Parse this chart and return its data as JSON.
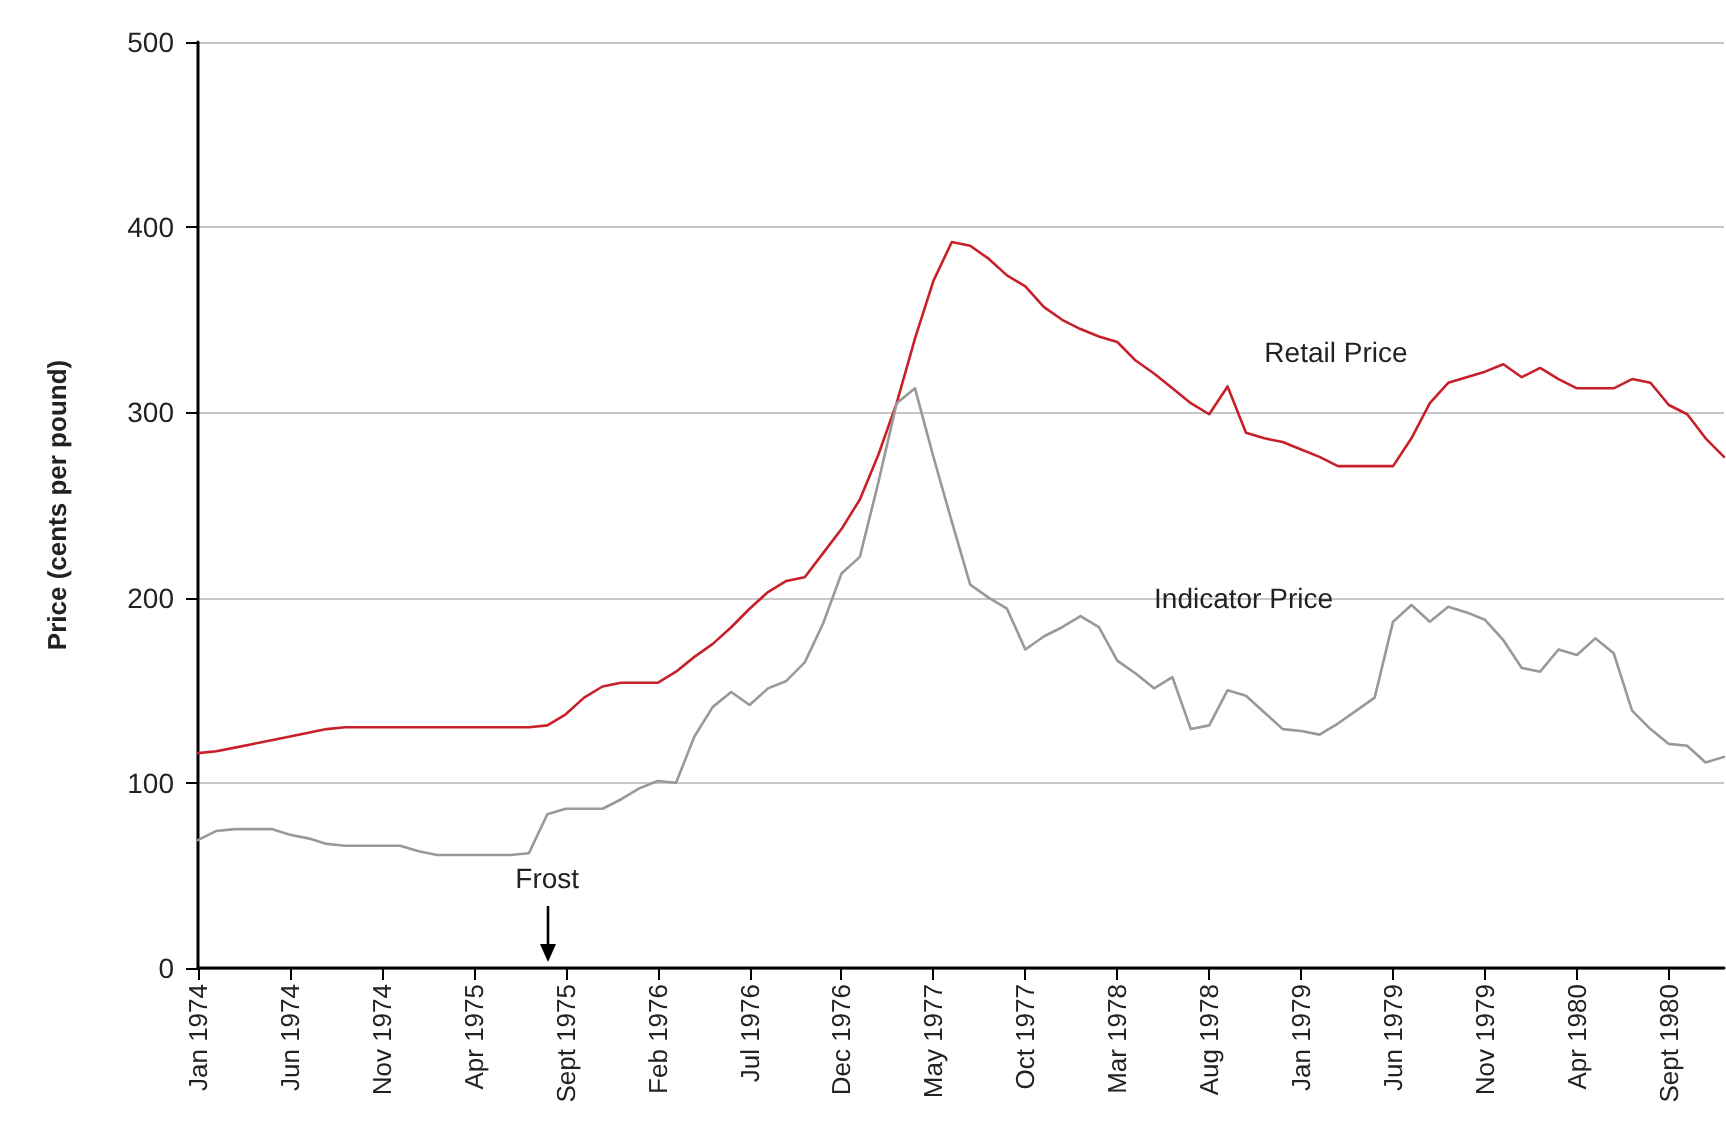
{
  "chart_data": {
    "type": "line",
    "ylabel": "Price (cents per pound)",
    "categories": [
      "Jan 1974",
      null,
      null,
      null,
      null,
      "Jun 1974",
      null,
      null,
      null,
      null,
      "Nov 1974",
      null,
      null,
      null,
      null,
      "Apr 1975",
      null,
      null,
      null,
      null,
      "Sept 1975",
      null,
      null,
      null,
      null,
      "Feb 1976",
      null,
      null,
      null,
      null,
      "Jul 1976",
      null,
      null,
      null,
      null,
      "Dec 1976",
      null,
      null,
      null,
      null,
      "May 1977",
      null,
      null,
      null,
      null,
      "Oct 1977",
      null,
      null,
      null,
      null,
      "Mar 1978",
      null,
      null,
      null,
      null,
      "Aug 1978",
      null,
      null,
      null,
      null,
      "Jan 1979",
      null,
      null,
      null,
      null,
      "Jun 1979",
      null,
      null,
      null,
      null,
      "Nov 1979",
      null,
      null,
      null,
      null,
      "Apr 1980",
      null,
      null,
      null,
      null,
      "Sept 1980",
      null,
      null,
      null
    ],
    "series": [
      {
        "name": "Retail Price",
        "color": "#c8202a",
        "values": [
          116,
          117,
          119,
          121,
          123,
          125,
          127,
          129,
          130,
          130,
          130,
          130,
          130,
          130,
          130,
          130,
          130,
          130,
          130,
          131,
          137,
          146,
          152,
          154,
          154,
          154,
          160,
          168,
          175,
          184,
          194,
          203,
          209,
          211,
          224,
          237,
          253,
          277,
          305,
          340,
          371,
          392,
          390,
          383,
          374,
          368,
          357,
          350,
          345,
          341,
          338,
          328,
          321,
          313,
          305,
          299,
          314,
          289,
          286,
          284,
          280,
          276,
          271,
          271,
          271,
          271,
          286,
          305,
          316,
          319,
          322,
          326,
          319,
          324,
          318,
          313,
          313,
          313,
          318,
          316,
          304,
          299,
          286,
          276
        ]
      },
      {
        "name": "Indicator Price",
        "color": "#999999",
        "values": [
          69,
          74,
          75,
          75,
          75,
          72,
          70,
          67,
          66,
          66,
          66,
          66,
          63,
          61,
          61,
          61,
          61,
          61,
          62,
          83,
          86,
          86,
          86,
          91,
          97,
          101,
          100,
          125,
          141,
          149,
          142,
          151,
          155,
          165,
          186,
          213,
          222,
          262,
          305,
          313,
          276,
          241,
          207,
          200,
          194,
          172,
          179,
          184,
          190,
          184,
          166,
          159,
          151,
          157,
          129,
          131,
          150,
          147,
          138,
          129,
          128,
          126,
          132,
          139,
          146,
          187,
          196,
          187,
          195,
          192,
          188,
          177,
          162,
          160,
          172,
          169,
          178,
          170,
          139,
          129,
          121,
          120,
          111,
          114
        ]
      }
    ],
    "ylim": [
      0,
      500
    ],
    "yticks": [
      0,
      100,
      200,
      300,
      400,
      500
    ],
    "grid": "y",
    "line_style": "solid",
    "annotations": [
      "Frost"
    ]
  }
}
